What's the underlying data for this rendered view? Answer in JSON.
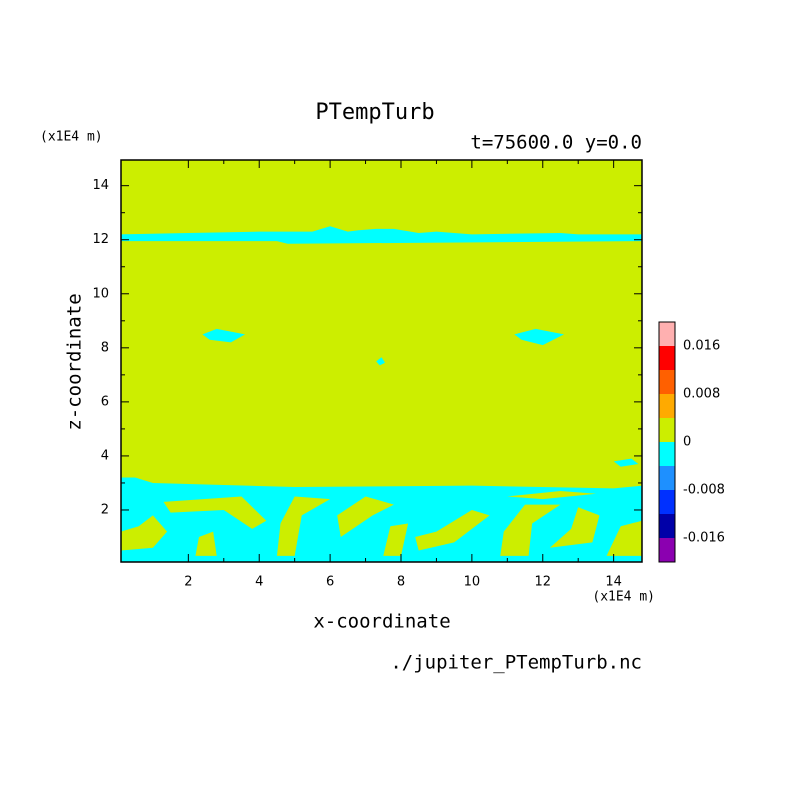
{
  "chart_data": {
    "type": "contour",
    "title": "PTempTurb",
    "subtitle": "t=75600.0 y=0.0",
    "x_label": "x-coordinate",
    "y_label": "z-coordinate",
    "x_unit": "(x1E4 m)",
    "y_unit": "(x1E4 m)",
    "footer": "./jupiter_PTempTurb.nc",
    "xlim": [
      0.1,
      14.8
    ],
    "ylim": [
      0.075,
      14.95
    ],
    "xticks": [
      2,
      4,
      6,
      8,
      10,
      12,
      14
    ],
    "yticks": [
      2,
      4,
      6,
      8,
      10,
      12,
      14
    ],
    "levels": [
      -0.02,
      -0.016,
      -0.012,
      -0.008,
      -0.004,
      0,
      0.004,
      0.008,
      0.012,
      0.016,
      0.02
    ],
    "level_colors": [
      "#8b00b0",
      "#0000a8",
      "#0030ff",
      "#1e90ff",
      "#00ffff",
      "#ccee00",
      "#ffaa00",
      "#ff6000",
      "#ff0000",
      "#ffb0b0"
    ],
    "colorbar_ticks": [
      -0.016,
      -0.008,
      0,
      0.008,
      0.016
    ],
    "background_value": 0.002,
    "regions": [
      {
        "value": -0.002,
        "x": [
          0.1,
          14.8,
          14.8,
          14.0,
          10,
          5,
          1.0,
          0.5,
          0.1
        ],
        "z": [
          0.075,
          0.075,
          2.9,
          2.8,
          2.9,
          2.85,
          3.0,
          3.2,
          3.2
        ]
      },
      {
        "value": -0.002,
        "x": [
          0.1,
          4.5,
          4.8,
          14.8,
          14.8,
          13,
          12.5,
          10,
          9,
          8.5,
          7.8,
          7.3,
          6.8,
          6.5,
          6.0,
          5.5,
          4.5,
          4,
          2,
          0.1
        ],
        "z": [
          11.95,
          11.95,
          11.85,
          11.95,
          12.2,
          12.2,
          12.25,
          12.2,
          12.3,
          12.25,
          12.4,
          12.4,
          12.35,
          12.3,
          12.5,
          12.3,
          12.3,
          12.3,
          12.25,
          12.2
        ]
      },
      {
        "value": -0.002,
        "x": [
          2.4,
          2.8,
          3.6,
          3.2,
          2.6
        ],
        "z": [
          8.5,
          8.7,
          8.5,
          8.2,
          8.3
        ]
      },
      {
        "value": -0.002,
        "x": [
          11.2,
          11.8,
          12.6,
          12.0,
          11.4
        ],
        "z": [
          8.5,
          8.7,
          8.5,
          8.1,
          8.3
        ]
      },
      {
        "value": -0.002,
        "x": [
          7.3,
          7.45,
          7.55,
          7.4
        ],
        "z": [
          7.5,
          7.65,
          7.45,
          7.35
        ]
      },
      {
        "value": -0.002,
        "x": [
          14.0,
          14.5,
          14.7,
          14.2
        ],
        "z": [
          3.8,
          3.9,
          3.7,
          3.6
        ]
      },
      {
        "value": 0.002,
        "x": [
          0.1,
          1.0,
          1.4,
          1.0,
          0.6,
          0.1
        ],
        "z": [
          0.5,
          0.6,
          1.2,
          1.8,
          1.4,
          1.2
        ]
      },
      {
        "value": 0.002,
        "x": [
          1.3,
          3.5,
          4.2,
          3.8,
          3.0,
          1.5
        ],
        "z": [
          2.3,
          2.5,
          1.6,
          1.3,
          2.0,
          1.9
        ]
      },
      {
        "value": 0.002,
        "x": [
          2.2,
          2.8,
          2.7,
          2.3
        ],
        "z": [
          0.3,
          0.3,
          1.2,
          1.0
        ]
      },
      {
        "value": 0.002,
        "x": [
          4.5,
          5.0,
          5.2,
          6.0,
          5.0,
          4.6
        ],
        "z": [
          0.3,
          0.3,
          1.8,
          2.4,
          2.5,
          1.5
        ]
      },
      {
        "value": 0.002,
        "x": [
          6.3,
          7.2,
          7.8,
          7.0,
          6.2
        ],
        "z": [
          1.0,
          1.8,
          2.2,
          2.5,
          1.8
        ]
      },
      {
        "value": 0.002,
        "x": [
          8.5,
          9.5,
          10.5,
          10.0,
          9.0,
          8.4
        ],
        "z": [
          0.5,
          0.8,
          1.8,
          2.0,
          1.2,
          1.0
        ]
      },
      {
        "value": 0.002,
        "x": [
          7.5,
          8.0,
          8.2,
          7.7
        ],
        "z": [
          0.3,
          0.3,
          1.5,
          1.4
        ]
      },
      {
        "value": 0.002,
        "x": [
          10.8,
          11.6,
          11.7,
          12.5,
          11.5,
          10.9
        ],
        "z": [
          0.3,
          0.3,
          1.5,
          2.2,
          2.2,
          1.2
        ]
      },
      {
        "value": 0.002,
        "x": [
          12.2,
          13.4,
          13.6,
          13.0,
          12.8
        ],
        "z": [
          0.6,
          0.8,
          1.8,
          2.1,
          1.3
        ]
      },
      {
        "value": 0.002,
        "x": [
          13.8,
          14.8,
          14.8,
          14.2
        ],
        "z": [
          0.3,
          0.3,
          1.6,
          1.4
        ]
      },
      {
        "value": 0.002,
        "x": [
          11.0,
          12.5,
          13.5,
          12.0
        ],
        "z": [
          2.5,
          2.7,
          2.6,
          2.4
        ]
      }
    ]
  }
}
